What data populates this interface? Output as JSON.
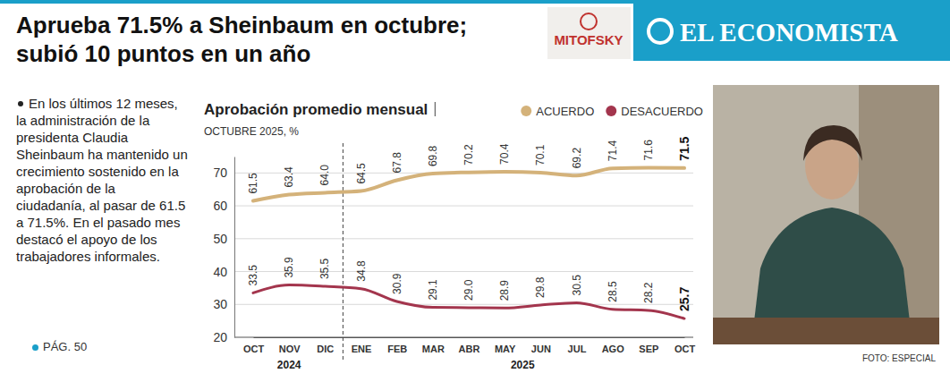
{
  "header": {
    "title": "Aprueba 71.5% a Sheinbaum en octubre; subió 10 puntos en un año",
    "brand": "EL ECONOMISTA",
    "source_logo": "MITOFSKY"
  },
  "sidebar": {
    "text": "En los últimos 12 meses, la administración de la presidenta Claudia Sheinbaum ha mantenido un crecimiento sostenido en la aprobación de la ciudadanía, al pasar de 61.5 a 71.5%. En el pasado mes destacó el apoyo de los trabajadores informales.",
    "page_ref": "PÁG. 50"
  },
  "photo_credit": "FOTO: ESPECIAL",
  "chart_data": {
    "type": "line",
    "title": "Aprobación promedio mensual",
    "subtitle": "OCTUBRE 2025, %",
    "categories": [
      "OCT",
      "NOV",
      "DIC",
      "ENE",
      "FEB",
      "MAR",
      "ABR",
      "MAY",
      "JUN",
      "JUL",
      "AGO",
      "SEP",
      "OCT"
    ],
    "category_groups": [
      "2024",
      "2024",
      "2024",
      "2025",
      "2025",
      "2025",
      "2025",
      "2025",
      "2025",
      "2025",
      "2025",
      "2025",
      "2025"
    ],
    "series": [
      {
        "name": "ACUERDO",
        "color": "#d4b27a",
        "values": [
          61.5,
          63.4,
          64.0,
          64.5,
          67.8,
          69.8,
          70.2,
          70.4,
          70.1,
          69.2,
          71.4,
          71.6,
          71.5
        ],
        "value_labels": [
          "61.5",
          "63.4",
          "64.0",
          "64.5",
          "67.8",
          "69.8",
          "70.2",
          "70.4",
          "70.1",
          "69.2",
          "71.4",
          "71.6",
          "71.5"
        ]
      },
      {
        "name": "DESACUERDO",
        "color": "#a3354d",
        "values": [
          33.5,
          35.9,
          35.5,
          34.8,
          30.9,
          29.1,
          29.0,
          28.9,
          29.8,
          30.5,
          28.5,
          28.2,
          25.7
        ],
        "value_labels": [
          "33.5",
          "35.9",
          "35.5",
          "34.8",
          "30.9",
          "29.1",
          "29.0",
          "28.9",
          "29.8",
          "30.5",
          "28.5",
          "28.2",
          "25.7"
        ]
      }
    ],
    "ylim": [
      20,
      75
    ],
    "yticks": [
      20,
      30,
      40,
      50,
      60,
      70
    ],
    "grid": true,
    "legend": "top-right",
    "data_labels": true,
    "marker": "none",
    "line_style": "solid"
  }
}
